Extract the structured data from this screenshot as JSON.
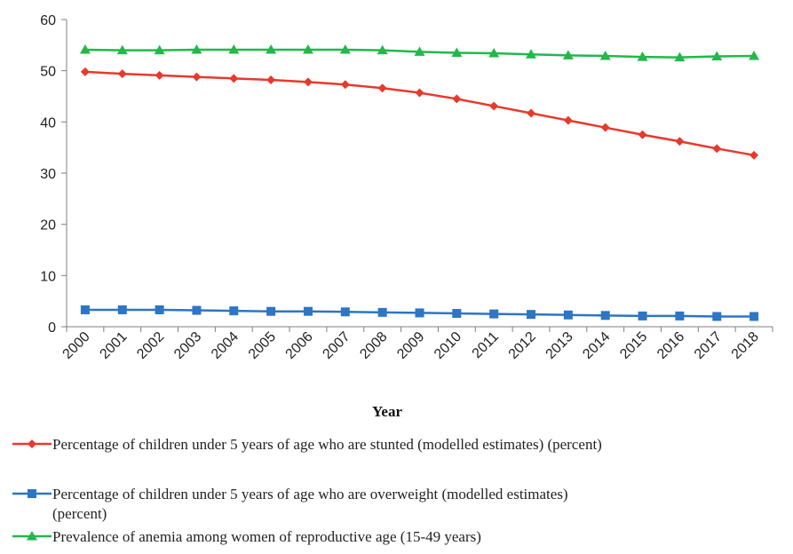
{
  "chart_data": {
    "type": "line",
    "x": [
      "2000",
      "2001",
      "2002",
      "2003",
      "2004",
      "2005",
      "2006",
      "2007",
      "2008",
      "2009",
      "2010",
      "2011",
      "2012",
      "2013",
      "2014",
      "2015",
      "2016",
      "2017",
      "2018"
    ],
    "xlabel": "Year",
    "ylabel": "",
    "ylim": [
      0,
      60
    ],
    "yticks": [
      0,
      10,
      20,
      30,
      40,
      50,
      60
    ],
    "grid": false,
    "legend_position": "bottom",
    "series": [
      {
        "name": "Percentage of children under 5 years of age who are stunted (modelled estimates) (percent)",
        "legend_lines": [
          "Percentage of children under 5 years of age who are stunted (modelled estimates) (percent)"
        ],
        "color": "#e8392c",
        "marker": "diamond",
        "values": [
          49.8,
          49.4,
          49.1,
          48.8,
          48.5,
          48.2,
          47.8,
          47.3,
          46.6,
          45.7,
          44.5,
          43.1,
          41.7,
          40.3,
          38.9,
          37.5,
          36.2,
          34.8,
          33.5
        ]
      },
      {
        "name": "Percentage of children under 5 years of age who are overweight (modelled estimates) (percent)",
        "legend_lines": [
          "Percentage of children under 5 years of age who are overweight (modelled estimates)",
          "(percent)"
        ],
        "color": "#2e75c4",
        "marker": "square",
        "values": [
          3.3,
          3.3,
          3.3,
          3.2,
          3.1,
          3.0,
          3.0,
          2.9,
          2.8,
          2.7,
          2.6,
          2.5,
          2.4,
          2.3,
          2.2,
          2.1,
          2.1,
          2.0,
          2.0
        ]
      },
      {
        "name": "Prevalence of anemia among women of reproductive age (15-49 years)",
        "legend_lines": [
          "Prevalence of anemia among women of reproductive age (15-49 years)"
        ],
        "color": "#22b84a",
        "marker": "triangle",
        "values": [
          54.1,
          54.0,
          54.0,
          54.1,
          54.1,
          54.1,
          54.1,
          54.1,
          54.0,
          53.7,
          53.5,
          53.4,
          53.2,
          53.0,
          52.9,
          52.7,
          52.6,
          52.8,
          52.9
        ]
      }
    ]
  }
}
